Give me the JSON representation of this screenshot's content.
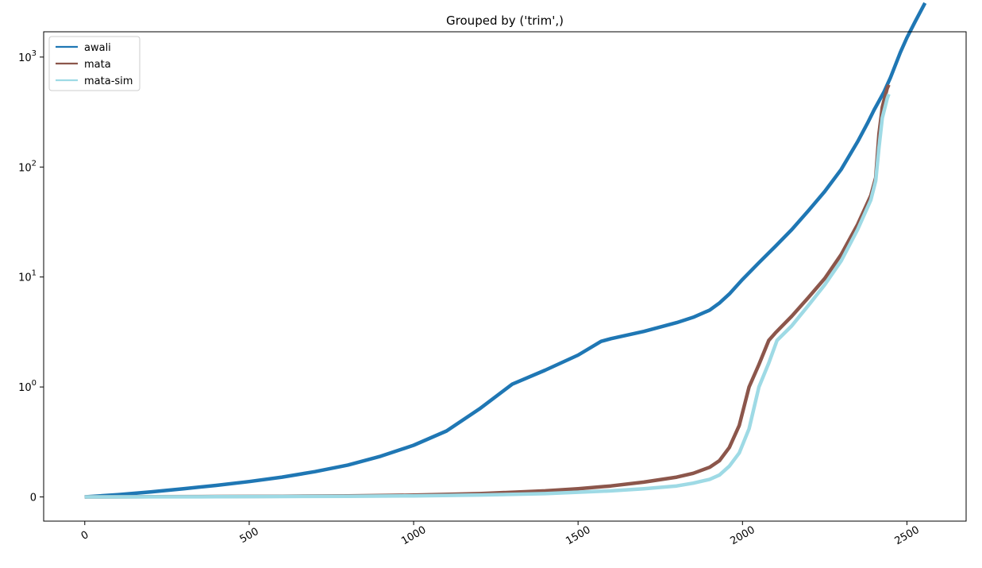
{
  "chart_data": {
    "type": "line",
    "title": "Grouped by ('trim',)",
    "xlabel": "",
    "ylabel": "",
    "xlim": [
      -125,
      2680
    ],
    "ylim_transform": [
      -0.22,
      4.23
    ],
    "yscale": "symlog",
    "xticks": [
      0,
      500,
      1000,
      1500,
      2000,
      2500
    ],
    "xtick_labels": [
      "0",
      "500",
      "1000",
      "1500",
      "2000",
      "2500"
    ],
    "yticks": [
      {
        "base": "0",
        "exp": ""
      },
      {
        "base": "10",
        "exp": "0"
      },
      {
        "base": "10",
        "exp": "1"
      },
      {
        "base": "10",
        "exp": "2"
      },
      {
        "base": "10",
        "exp": "3"
      }
    ],
    "ytick_values": [
      0,
      1,
      10,
      100,
      1000
    ],
    "legend_position": "upper left",
    "series": [
      {
        "name": "awali",
        "color": "#1f77b4",
        "points": [
          [
            0,
            0
          ],
          [
            100,
            0.02
          ],
          [
            200,
            0.045
          ],
          [
            300,
            0.075
          ],
          [
            400,
            0.105
          ],
          [
            500,
            0.14
          ],
          [
            600,
            0.18
          ],
          [
            700,
            0.23
          ],
          [
            800,
            0.29
          ],
          [
            900,
            0.37
          ],
          [
            1000,
            0.47
          ],
          [
            1100,
            0.6
          ],
          [
            1200,
            0.8
          ],
          [
            1300,
            1.06
          ],
          [
            1400,
            1.42
          ],
          [
            1500,
            1.95
          ],
          [
            1570,
            2.6
          ],
          [
            1600,
            2.75
          ],
          [
            1700,
            3.2
          ],
          [
            1800,
            3.85
          ],
          [
            1850,
            4.3
          ],
          [
            1900,
            5.0
          ],
          [
            1930,
            5.8
          ],
          [
            1960,
            7.0
          ],
          [
            2000,
            9.5
          ],
          [
            2050,
            13.5
          ],
          [
            2100,
            19
          ],
          [
            2150,
            27
          ],
          [
            2200,
            40
          ],
          [
            2250,
            60
          ],
          [
            2300,
            95
          ],
          [
            2350,
            170
          ],
          [
            2380,
            250
          ],
          [
            2400,
            330
          ],
          [
            2430,
            480
          ],
          [
            2450,
            650
          ],
          [
            2480,
            1100
          ],
          [
            2500,
            1500
          ],
          [
            2525,
            2100
          ],
          [
            2555,
            3100
          ]
        ]
      },
      {
        "name": "mata",
        "color": "#8c564b",
        "points": [
          [
            0,
            0
          ],
          [
            200,
            0.002
          ],
          [
            400,
            0.004
          ],
          [
            600,
            0.006
          ],
          [
            800,
            0.01
          ],
          [
            1000,
            0.016
          ],
          [
            1200,
            0.03
          ],
          [
            1400,
            0.055
          ],
          [
            1500,
            0.075
          ],
          [
            1600,
            0.1
          ],
          [
            1700,
            0.135
          ],
          [
            1800,
            0.18
          ],
          [
            1850,
            0.215
          ],
          [
            1900,
            0.27
          ],
          [
            1930,
            0.33
          ],
          [
            1960,
            0.45
          ],
          [
            1990,
            0.65
          ],
          [
            2020,
            1.0
          ],
          [
            2050,
            1.6
          ],
          [
            2080,
            2.65
          ],
          [
            2100,
            3.1
          ],
          [
            2150,
            4.4
          ],
          [
            2200,
            6.5
          ],
          [
            2250,
            9.7
          ],
          [
            2300,
            16
          ],
          [
            2350,
            30
          ],
          [
            2390,
            55
          ],
          [
            2405,
            80
          ],
          [
            2415,
            200
          ],
          [
            2425,
            350
          ],
          [
            2430,
            400
          ],
          [
            2440,
            520
          ],
          [
            2445,
            560
          ]
        ]
      },
      {
        "name": "mata-sim",
        "color": "#9edae5",
        "points": [
          [
            0,
            0
          ],
          [
            200,
            0.001
          ],
          [
            400,
            0.002
          ],
          [
            600,
            0.004
          ],
          [
            800,
            0.006
          ],
          [
            1000,
            0.01
          ],
          [
            1200,
            0.018
          ],
          [
            1400,
            0.03
          ],
          [
            1600,
            0.055
          ],
          [
            1700,
            0.075
          ],
          [
            1800,
            0.1
          ],
          [
            1850,
            0.125
          ],
          [
            1900,
            0.16
          ],
          [
            1930,
            0.2
          ],
          [
            1960,
            0.28
          ],
          [
            1990,
            0.4
          ],
          [
            2020,
            0.62
          ],
          [
            2050,
            1.0
          ],
          [
            2080,
            1.65
          ],
          [
            2105,
            2.65
          ],
          [
            2150,
            3.6
          ],
          [
            2200,
            5.5
          ],
          [
            2250,
            8.5
          ],
          [
            2300,
            14
          ],
          [
            2350,
            27
          ],
          [
            2390,
            50
          ],
          [
            2405,
            75
          ],
          [
            2415,
            150
          ],
          [
            2425,
            280
          ],
          [
            2440,
            420
          ],
          [
            2445,
            460
          ]
        ]
      }
    ]
  }
}
